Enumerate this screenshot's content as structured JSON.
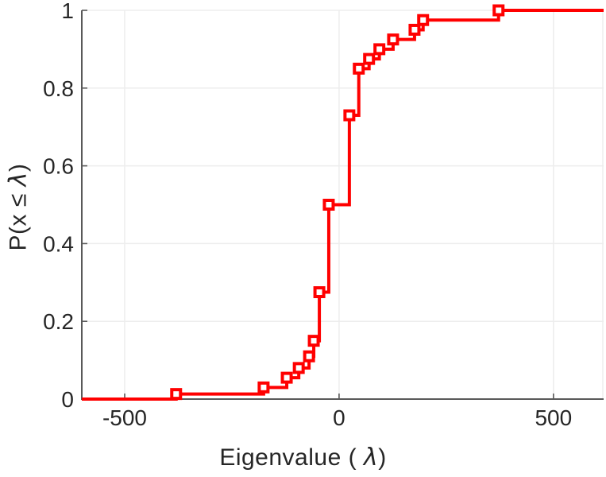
{
  "figure": {
    "background": "#ffffff",
    "line_color": "#ff0000",
    "axis_color": "#595959",
    "grid_color": "#ededed",
    "text_color": "#262626"
  },
  "labels": {
    "xlabel_prefix": "Eigenvalue ( ",
    "xlabel_symbol": "λ",
    "xlabel_suffix": ")",
    "ylabel_prefix": "P(x ≤ ",
    "ylabel_symbol": "λ",
    "ylabel_suffix": ")"
  },
  "chart_data": {
    "type": "line",
    "subtype": "empirical-cdf-step",
    "title": "",
    "xlabel": "Eigenvalue ( λ)",
    "ylabel": "P(x ≤ λ)",
    "xlim": [
      -600,
      617
    ],
    "ylim": [
      0,
      1
    ],
    "xticks": [
      "-500",
      "0",
      "500"
    ],
    "xtick_values": [
      -500,
      0,
      500
    ],
    "yticks": [
      "0",
      "0.2",
      "0.4",
      "0.6",
      "0.8",
      "1"
    ],
    "ytick_values": [
      0,
      0.2,
      0.4,
      0.6,
      0.8,
      1
    ],
    "grid": true,
    "legend": null,
    "marker": "open-square",
    "series": [
      {
        "name": "eigenvalue-ecdf",
        "color": "#ff0000",
        "start": [
          -600,
          0
        ],
        "points": [
          [
            -380,
            0.013
          ],
          [
            -176,
            0.03
          ],
          [
            -122,
            0.055
          ],
          [
            -94,
            0.08
          ],
          [
            -70,
            0.11
          ],
          [
            -59,
            0.15
          ],
          [
            -46,
            0.275
          ],
          [
            -24,
            0.5
          ],
          [
            24,
            0.73
          ],
          [
            46,
            0.85
          ],
          [
            70,
            0.875
          ],
          [
            94,
            0.9
          ],
          [
            126,
            0.925
          ],
          [
            176,
            0.95
          ],
          [
            196,
            0.975
          ],
          [
            372,
            1.0
          ]
        ]
      }
    ]
  }
}
